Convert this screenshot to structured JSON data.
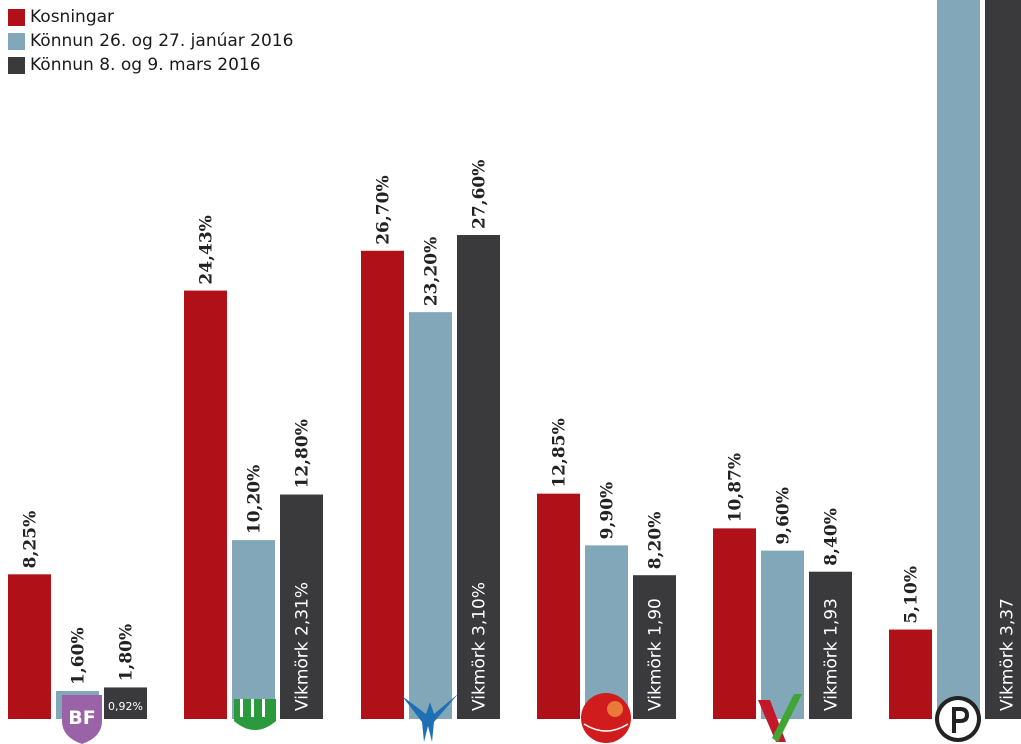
{
  "chart_data": {
    "type": "bar",
    "categories": [
      "BF",
      "Framsóknarflokkurinn",
      "Sjálfstæðisflokkurinn",
      "Samfylkingin",
      "Vinstri græn",
      "Píratar"
    ],
    "category_icons": [
      "bf-logo-icon",
      "framsokn-logo-icon",
      "falcon-logo-icon",
      "rose-logo-icon",
      "vg-logo-icon",
      "pirate-logo-icon"
    ],
    "series": [
      {
        "name": "Kosningar",
        "color": "#b01018",
        "values": [
          8.25,
          24.43,
          26.7,
          12.85,
          10.87,
          5.1
        ],
        "labels": [
          "8,25%",
          "24,43%",
          "26,70%",
          "12,85%",
          "10,87%",
          "5,10%"
        ]
      },
      {
        "name": "Könnun 26. og 27. janúar 2016",
        "color": "#82a7b9",
        "values": [
          1.6,
          10.2,
          23.2,
          9.9,
          9.6,
          41.0
        ],
        "labels": [
          "1,60%",
          "10,20%",
          "23,20%",
          "9,90%",
          "9,60%",
          ""
        ]
      },
      {
        "name": "Könnun 8. og 9. mars 2016",
        "color": "#3a393b",
        "values": [
          1.8,
          12.8,
          27.6,
          8.2,
          8.4,
          41.0
        ],
        "labels": [
          "1,80%",
          "12,80%",
          "27,60%",
          "8,20%",
          "8,40%",
          ""
        ]
      }
    ],
    "margin_of_error": [
      "0,92%",
      "Vikmörk 2,31%",
      "Vikmörk 3,10%",
      "Vikmörk 1,90",
      "Vikmörk 1,93",
      "Vikmörk 3,37"
    ],
    "ylim": [
      0,
      41
    ],
    "grid": false,
    "legend_position": "top-left",
    "title": "",
    "xlabel": "",
    "ylabel": ""
  }
}
